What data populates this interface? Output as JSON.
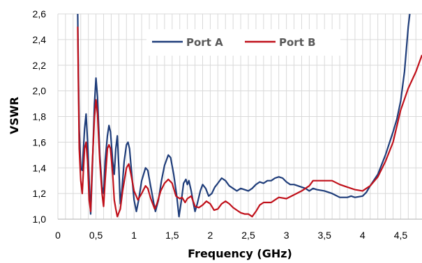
{
  "chart_data": {
    "type": "line",
    "xlabel": "Frequency  (GHz)",
    "ylabel": "VSWR",
    "xlim": [
      0,
      4.78
    ],
    "ylim": [
      1.0,
      2.6
    ],
    "x_ticks": [
      "0",
      "0,5",
      "1",
      "1,5",
      "2",
      "2,5",
      "3",
      "3,5",
      "4",
      "4,5"
    ],
    "y_ticks": [
      "1,0",
      "1,2",
      "1,4",
      "1,6",
      "1,8",
      "2,0",
      "2,2",
      "2,4",
      "2,6"
    ],
    "grid": true,
    "legend_position": "top-center",
    "series": [
      {
        "name": "Port  A",
        "color": "#1f3d7a",
        "points": [
          [
            0.26,
            2.6
          ],
          [
            0.27,
            2.1
          ],
          [
            0.28,
            1.7
          ],
          [
            0.3,
            1.4
          ],
          [
            0.32,
            1.38
          ],
          [
            0.35,
            1.7
          ],
          [
            0.37,
            1.82
          ],
          [
            0.39,
            1.6
          ],
          [
            0.41,
            1.3
          ],
          [
            0.43,
            1.04
          ],
          [
            0.45,
            1.35
          ],
          [
            0.48,
            1.9
          ],
          [
            0.5,
            2.1
          ],
          [
            0.52,
            1.95
          ],
          [
            0.55,
            1.5
          ],
          [
            0.58,
            1.25
          ],
          [
            0.6,
            1.2
          ],
          [
            0.62,
            1.45
          ],
          [
            0.65,
            1.65
          ],
          [
            0.67,
            1.73
          ],
          [
            0.69,
            1.68
          ],
          [
            0.72,
            1.45
          ],
          [
            0.74,
            1.35
          ],
          [
            0.76,
            1.55
          ],
          [
            0.78,
            1.65
          ],
          [
            0.8,
            1.4
          ],
          [
            0.82,
            1.12
          ],
          [
            0.84,
            1.22
          ],
          [
            0.87,
            1.45
          ],
          [
            0.9,
            1.58
          ],
          [
            0.92,
            1.6
          ],
          [
            0.94,
            1.55
          ],
          [
            0.97,
            1.35
          ],
          [
            1.0,
            1.15
          ],
          [
            1.03,
            1.06
          ],
          [
            1.06,
            1.15
          ],
          [
            1.1,
            1.3
          ],
          [
            1.15,
            1.4
          ],
          [
            1.18,
            1.38
          ],
          [
            1.22,
            1.25
          ],
          [
            1.26,
            1.12
          ],
          [
            1.28,
            1.06
          ],
          [
            1.32,
            1.15
          ],
          [
            1.36,
            1.3
          ],
          [
            1.4,
            1.42
          ],
          [
            1.45,
            1.5
          ],
          [
            1.48,
            1.48
          ],
          [
            1.52,
            1.35
          ],
          [
            1.56,
            1.18
          ],
          [
            1.59,
            1.02
          ],
          [
            1.62,
            1.14
          ],
          [
            1.65,
            1.28
          ],
          [
            1.68,
            1.31
          ],
          [
            1.7,
            1.27
          ],
          [
            1.72,
            1.3
          ],
          [
            1.75,
            1.22
          ],
          [
            1.78,
            1.12
          ],
          [
            1.8,
            1.06
          ],
          [
            1.83,
            1.12
          ],
          [
            1.87,
            1.22
          ],
          [
            1.9,
            1.27
          ],
          [
            1.94,
            1.24
          ],
          [
            1.98,
            1.18
          ],
          [
            2.02,
            1.2
          ],
          [
            2.06,
            1.25
          ],
          [
            2.1,
            1.28
          ],
          [
            2.15,
            1.32
          ],
          [
            2.2,
            1.3
          ],
          [
            2.25,
            1.26
          ],
          [
            2.3,
            1.24
          ],
          [
            2.35,
            1.22
          ],
          [
            2.4,
            1.24
          ],
          [
            2.45,
            1.23
          ],
          [
            2.5,
            1.22
          ],
          [
            2.55,
            1.24
          ],
          [
            2.6,
            1.27
          ],
          [
            2.65,
            1.29
          ],
          [
            2.7,
            1.28
          ],
          [
            2.75,
            1.3
          ],
          [
            2.8,
            1.3
          ],
          [
            2.85,
            1.32
          ],
          [
            2.9,
            1.33
          ],
          [
            2.95,
            1.32
          ],
          [
            3.0,
            1.29
          ],
          [
            3.05,
            1.27
          ],
          [
            3.1,
            1.27
          ],
          [
            3.15,
            1.26
          ],
          [
            3.2,
            1.25
          ],
          [
            3.25,
            1.24
          ],
          [
            3.3,
            1.22
          ],
          [
            3.35,
            1.24
          ],
          [
            3.4,
            1.23
          ],
          [
            3.5,
            1.22
          ],
          [
            3.6,
            1.2
          ],
          [
            3.7,
            1.17
          ],
          [
            3.8,
            1.17
          ],
          [
            3.85,
            1.18
          ],
          [
            3.9,
            1.17
          ],
          [
            4.0,
            1.18
          ],
          [
            4.05,
            1.21
          ],
          [
            4.1,
            1.26
          ],
          [
            4.2,
            1.35
          ],
          [
            4.3,
            1.5
          ],
          [
            4.4,
            1.68
          ],
          [
            4.45,
            1.78
          ],
          [
            4.5,
            1.92
          ],
          [
            4.55,
            2.15
          ],
          [
            4.6,
            2.5
          ],
          [
            4.62,
            2.6
          ]
        ]
      },
      {
        "name": "Port  B",
        "color": "#c0101a",
        "points": [
          [
            0.26,
            2.5
          ],
          [
            0.27,
            2.0
          ],
          [
            0.28,
            1.55
          ],
          [
            0.3,
            1.3
          ],
          [
            0.32,
            1.2
          ],
          [
            0.35,
            1.55
          ],
          [
            0.37,
            1.6
          ],
          [
            0.39,
            1.45
          ],
          [
            0.41,
            1.15
          ],
          [
            0.43,
            1.06
          ],
          [
            0.45,
            1.4
          ],
          [
            0.48,
            1.8
          ],
          [
            0.5,
            1.93
          ],
          [
            0.52,
            1.82
          ],
          [
            0.55,
            1.45
          ],
          [
            0.58,
            1.2
          ],
          [
            0.6,
            1.1
          ],
          [
            0.62,
            1.3
          ],
          [
            0.65,
            1.55
          ],
          [
            0.67,
            1.58
          ],
          [
            0.69,
            1.55
          ],
          [
            0.72,
            1.35
          ],
          [
            0.74,
            1.15
          ],
          [
            0.76,
            1.08
          ],
          [
            0.78,
            1.02
          ],
          [
            0.82,
            1.08
          ],
          [
            0.85,
            1.22
          ],
          [
            0.9,
            1.4
          ],
          [
            0.93,
            1.43
          ],
          [
            0.96,
            1.35
          ],
          [
            1.0,
            1.22
          ],
          [
            1.05,
            1.15
          ],
          [
            1.1,
            1.2
          ],
          [
            1.15,
            1.26
          ],
          [
            1.18,
            1.24
          ],
          [
            1.22,
            1.16
          ],
          [
            1.27,
            1.08
          ],
          [
            1.3,
            1.12
          ],
          [
            1.35,
            1.22
          ],
          [
            1.4,
            1.28
          ],
          [
            1.45,
            1.31
          ],
          [
            1.5,
            1.28
          ],
          [
            1.55,
            1.18
          ],
          [
            1.6,
            1.16
          ],
          [
            1.63,
            1.17
          ],
          [
            1.67,
            1.13
          ],
          [
            1.7,
            1.16
          ],
          [
            1.75,
            1.18
          ],
          [
            1.8,
            1.1
          ],
          [
            1.85,
            1.09
          ],
          [
            1.9,
            1.11
          ],
          [
            1.95,
            1.14
          ],
          [
            2.0,
            1.12
          ],
          [
            2.05,
            1.07
          ],
          [
            2.1,
            1.08
          ],
          [
            2.15,
            1.12
          ],
          [
            2.2,
            1.14
          ],
          [
            2.25,
            1.12
          ],
          [
            2.3,
            1.09
          ],
          [
            2.35,
            1.07
          ],
          [
            2.4,
            1.05
          ],
          [
            2.45,
            1.04
          ],
          [
            2.5,
            1.04
          ],
          [
            2.55,
            1.02
          ],
          [
            2.6,
            1.06
          ],
          [
            2.65,
            1.11
          ],
          [
            2.7,
            1.13
          ],
          [
            2.8,
            1.13
          ],
          [
            2.85,
            1.15
          ],
          [
            2.9,
            1.17
          ],
          [
            3.0,
            1.16
          ],
          [
            3.1,
            1.19
          ],
          [
            3.2,
            1.22
          ],
          [
            3.3,
            1.26
          ],
          [
            3.35,
            1.3
          ],
          [
            3.4,
            1.3
          ],
          [
            3.5,
            1.3
          ],
          [
            3.6,
            1.3
          ],
          [
            3.7,
            1.27
          ],
          [
            3.8,
            1.25
          ],
          [
            3.9,
            1.23
          ],
          [
            4.0,
            1.22
          ],
          [
            4.1,
            1.26
          ],
          [
            4.2,
            1.33
          ],
          [
            4.3,
            1.45
          ],
          [
            4.4,
            1.6
          ],
          [
            4.5,
            1.85
          ],
          [
            4.6,
            2.02
          ],
          [
            4.7,
            2.15
          ],
          [
            4.78,
            2.28
          ]
        ]
      }
    ]
  }
}
